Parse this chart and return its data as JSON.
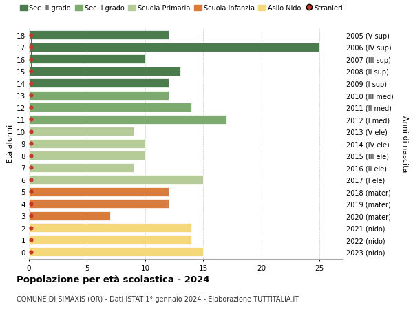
{
  "ages": [
    18,
    17,
    16,
    15,
    14,
    13,
    12,
    11,
    10,
    9,
    8,
    7,
    6,
    5,
    4,
    3,
    2,
    1,
    0
  ],
  "years": [
    "2005 (V sup)",
    "2006 (IV sup)",
    "2007 (III sup)",
    "2008 (II sup)",
    "2009 (I sup)",
    "2010 (III med)",
    "2011 (II med)",
    "2012 (I med)",
    "2013 (V ele)",
    "2014 (IV ele)",
    "2015 (III ele)",
    "2016 (II ele)",
    "2017 (I ele)",
    "2018 (mater)",
    "2019 (mater)",
    "2020 (mater)",
    "2021 (nido)",
    "2022 (nido)",
    "2023 (nido)"
  ],
  "values": [
    12,
    25,
    10,
    13,
    12,
    12,
    14,
    17,
    9,
    10,
    10,
    9,
    15,
    12,
    12,
    7,
    14,
    14,
    15
  ],
  "colors": [
    "#4a7c4e",
    "#4a7c4e",
    "#4a7c4e",
    "#4a7c4e",
    "#4a7c4e",
    "#7daa6e",
    "#7daa6e",
    "#7daa6e",
    "#b5cc99",
    "#b5cc99",
    "#b5cc99",
    "#b5cc99",
    "#b5cc99",
    "#d97b3a",
    "#d97b3a",
    "#d97b3a",
    "#f5d87a",
    "#f5d87a",
    "#f5d87a"
  ],
  "legend_labels": [
    "Sec. II grado",
    "Sec. I grado",
    "Scuola Primaria",
    "Scuola Infanzia",
    "Asilo Nido",
    "Stranieri"
  ],
  "legend_colors": [
    "#4a7c4e",
    "#7daa6e",
    "#b5cc99",
    "#d97b3a",
    "#f5d87a",
    "#c0392b"
  ],
  "ylabel": "Età alunni",
  "ylabel_right": "Anni di nascita",
  "title": "Popolazione per età scolastica - 2024",
  "subtitle": "COMUNE DI SIMAXIS (OR) - Dati ISTAT 1° gennaio 2024 - Elaborazione TUTTITALIA.IT",
  "xlim": [
    0,
    27
  ],
  "bg_color": "#ffffff",
  "grid_color": "#cccccc",
  "stranieri_color": "#c0392b",
  "bar_height": 0.75
}
